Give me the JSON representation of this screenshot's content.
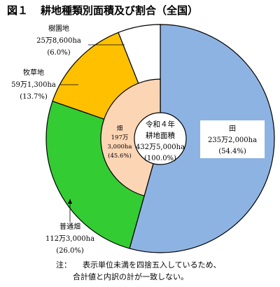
{
  "title": {
    "number": "図１",
    "text": "耕地種類別面積及び割合（全国）"
  },
  "chart_data": {
    "type": "pie",
    "title": "耕地種類別面積及び割合（全国）",
    "total": {
      "label_1": "令和４年",
      "label_2": "耕地面積",
      "area": "432万5,000ha",
      "pct": "(100.0%)",
      "value": 4325000
    },
    "outer": [
      {
        "name": "田",
        "area": "235万2,000ha",
        "pct_label": "(54.4%)",
        "value": 2352000,
        "pct": 54.4,
        "color": "#8db3e2"
      },
      {
        "name": "普通畑",
        "area": "112万3,000ha",
        "pct_label": "(26.0%)",
        "value": 1123000,
        "pct": 26.0,
        "color": "#33cc33"
      },
      {
        "name": "牧草地",
        "area": "59万1,300ha",
        "pct_label": "(13.7%)",
        "value": 591300,
        "pct": 13.7,
        "color": "#ffc000"
      },
      {
        "name": "樹園地",
        "area": "25万8,600ha",
        "pct_label": "(6.0%)",
        "value": 258600,
        "pct": 6.0,
        "color": "#ffffff"
      }
    ],
    "inner": {
      "name": "畑",
      "area_1": "197万",
      "area_2": "3,000ha",
      "pct_label": "(45.6%)",
      "value": 1973000,
      "pct": 45.6,
      "color": "#fcd5b5"
    }
  },
  "note": {
    "head": "注：",
    "line1": "表示単位未満を四捨五入しているため、",
    "line2": "合計値と内訳の計が一致しない。"
  }
}
